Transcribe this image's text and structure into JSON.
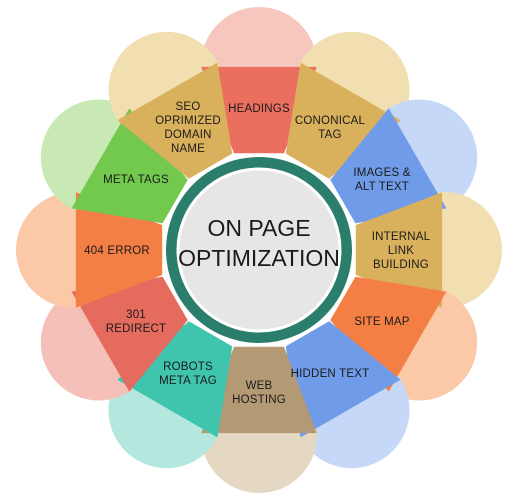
{
  "center": {
    "lines": [
      "ON PAGE",
      "OPTIMIZATION"
    ],
    "ring_color": "#2b7e6c",
    "inner_color": "#e6e6e6"
  },
  "segments": [
    {
      "name": "headings",
      "lines": [
        "HEADINGS"
      ],
      "color": "#ea6f5f",
      "light": "#f7c7be"
    },
    {
      "name": "cononical-tag",
      "lines": [
        "CONONICAL",
        "TAG"
      ],
      "color": "#d9b15c",
      "light": "#f1dfb2"
    },
    {
      "name": "images-alt-text",
      "lines": [
        "IMAGES &",
        "ALT TEXT"
      ],
      "color": "#6f9be8",
      "light": "#c6d8f7"
    },
    {
      "name": "internal-link",
      "lines": [
        "INTERNAL",
        "LINK",
        "BUILDING"
      ],
      "color": "#d9b15c",
      "light": "#f1dfb2"
    },
    {
      "name": "site-map",
      "lines": [
        "SITE MAP"
      ],
      "color": "#f47f45",
      "light": "#fbc8a8"
    },
    {
      "name": "hidden-text",
      "lines": [
        "HIDDEN TEXT"
      ],
      "color": "#6f9be8",
      "light": "#c6d8f7"
    },
    {
      "name": "web-hosting",
      "lines": [
        "WEB",
        "HOSTING"
      ],
      "color": "#b39a74",
      "light": "#e5d8c2"
    },
    {
      "name": "robots-meta-tag",
      "lines": [
        "ROBOTS",
        "META TAG"
      ],
      "color": "#3fc4ae",
      "light": "#b4e7de"
    },
    {
      "name": "301-redirect",
      "lines": [
        "301",
        "REDIRECT"
      ],
      "color": "#e46b5e",
      "light": "#f4c0b8"
    },
    {
      "name": "404-error",
      "lines": [
        "404 ERROR"
      ],
      "color": "#f47f45",
      "light": "#fbc8a8"
    },
    {
      "name": "meta-tags",
      "lines": [
        "META TAGS"
      ],
      "color": "#73c84e",
      "light": "#c8e9b4"
    },
    {
      "name": "seo-domain-name",
      "lines": [
        "SEO",
        "OPRIMIZED",
        "DOMAIN",
        "NAME"
      ],
      "color": "#d9b15c",
      "light": "#f1dfb2"
    }
  ]
}
